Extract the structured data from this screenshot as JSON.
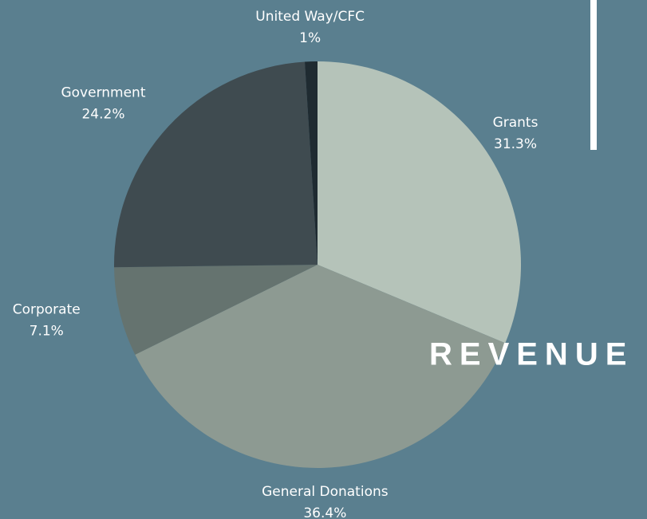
{
  "chart_data": {
    "type": "pie",
    "title": "REVENUE",
    "categories": [
      "Grants",
      "General Donations",
      "Corporate",
      "Government",
      "United Way/CFC"
    ],
    "values": [
      31.3,
      36.4,
      7.1,
      24.2,
      1
    ],
    "value_labels": [
      "31.3%",
      "36.4%",
      "7.1%",
      "24.2%",
      "1%"
    ],
    "colors": [
      "#b5c3b9",
      "#8d9a92",
      "#65736f",
      "#3f4b50",
      "#1f2b31"
    ]
  }
}
